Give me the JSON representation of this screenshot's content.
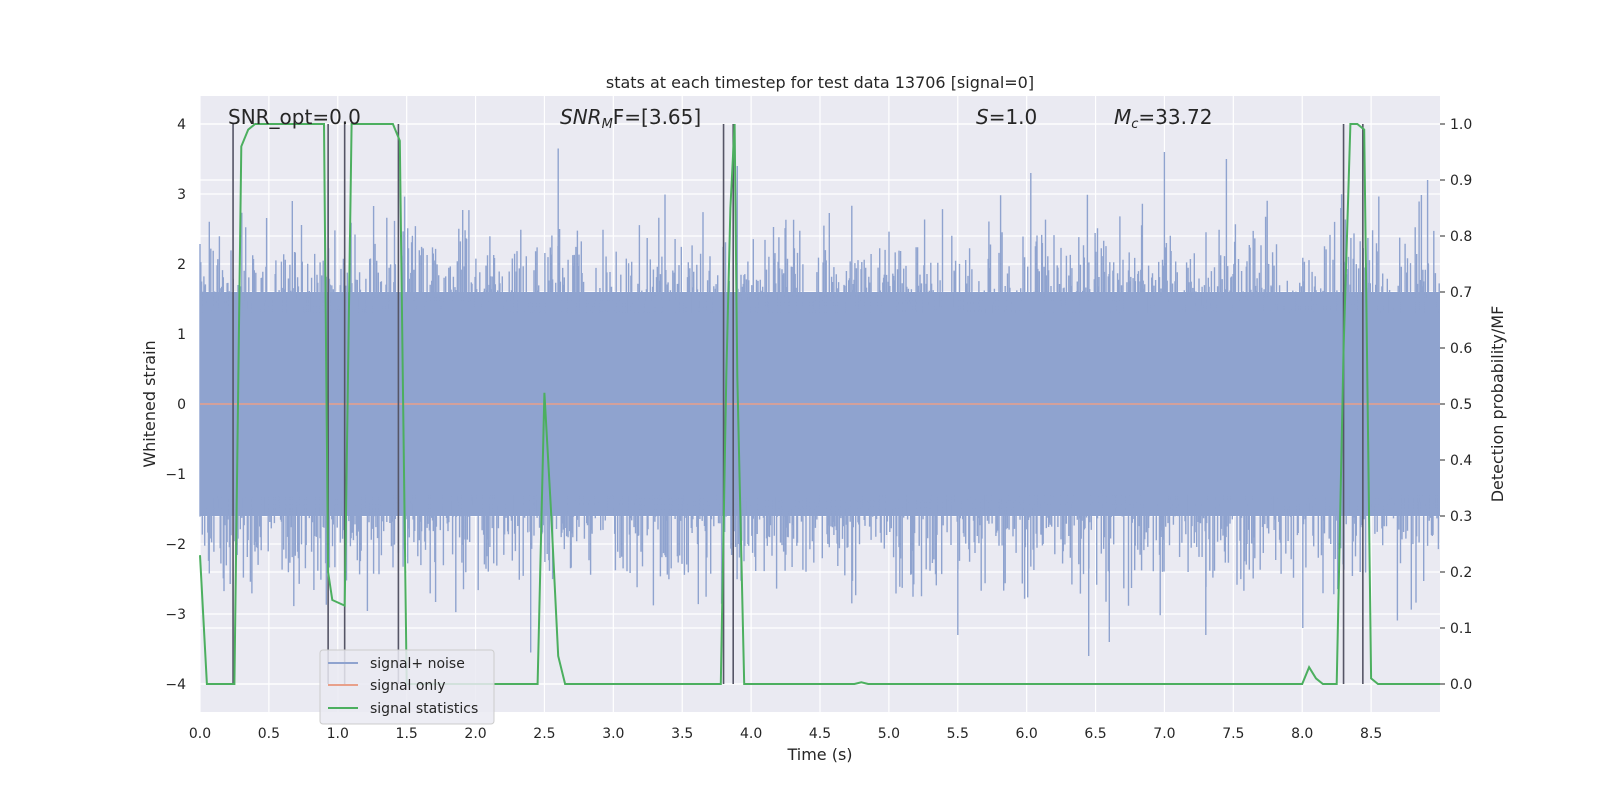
{
  "chart_data": {
    "type": "line",
    "title": "stats at each timestep for test data 13706 [signal=0]",
    "xlabel": "Time (s)",
    "ylabel": "Whitened strain",
    "ylabel_right": "Detection probability/MF",
    "xlim": [
      0.0,
      9.0
    ],
    "ylim": [
      -4.4,
      4.4
    ],
    "ylim_right": [
      -0.05,
      1.05
    ],
    "x_ticks": [
      "0.0",
      "0.5",
      "1.0",
      "1.5",
      "2.0",
      "2.5",
      "3.0",
      "3.5",
      "4.0",
      "4.5",
      "5.0",
      "5.5",
      "6.0",
      "6.5",
      "7.0",
      "7.5",
      "8.0",
      "8.5"
    ],
    "y_ticks": [
      "4",
      "3",
      "2",
      "1",
      "0",
      "−1",
      "−2",
      "−3",
      "−4"
    ],
    "y_ticks_right": [
      "1.0",
      "0.9",
      "0.8",
      "0.7",
      "0.6",
      "0.5",
      "0.4",
      "0.3",
      "0.2",
      "0.1",
      "0.0"
    ],
    "grid": true,
    "legend_position": "lower-left",
    "annotations": {
      "snr_opt": "SNR_opt=0.0",
      "snr_mf_prefix": "SNR",
      "snr_mf_sub": "M",
      "snr_mf_suffix": "F=[3.65]",
      "s_prefix": "S",
      "s_value": "=1.0",
      "mc_prefix": "M",
      "mc_sub": "c",
      "mc_value": "=33.72"
    },
    "series": [
      {
        "name": "signal+ noise",
        "color": "#8fa3cf",
        "axis": "left",
        "description_range": [
          -3.6,
          3.6
        ],
        "spikes": [
          {
            "x": 0.93,
            "y": 3.2
          },
          {
            "x": 0.67,
            "y": 2.9
          },
          {
            "x": 2.6,
            "y": 3.65
          },
          {
            "x": 3.9,
            "y": 3.4
          },
          {
            "x": 6.03,
            "y": 3.3
          },
          {
            "x": 7.0,
            "y": 3.6
          },
          {
            "x": 7.45,
            "y": 3.5
          },
          {
            "x": 2.4,
            "y": -3.55
          },
          {
            "x": 6.6,
            "y": -3.4
          },
          {
            "x": 6.45,
            "y": -3.6
          },
          {
            "x": 5.5,
            "y": -3.3
          },
          {
            "x": 7.3,
            "y": -3.3
          }
        ]
      },
      {
        "name": "signal only",
        "color": "#e8a08a",
        "axis": "left",
        "x": [
          0.0,
          9.0
        ],
        "y": [
          0.0,
          0.0
        ]
      },
      {
        "name": "signal statistics",
        "color": "#4caf5f",
        "axis": "right",
        "x": [
          0.0,
          0.05,
          0.1,
          0.15,
          0.2,
          0.25,
          0.3,
          0.35,
          0.4,
          0.5,
          0.6,
          0.7,
          0.8,
          0.9,
          0.93,
          0.96,
          1.05,
          1.1,
          1.2,
          1.3,
          1.4,
          1.45,
          1.5,
          1.6,
          2.0,
          2.4,
          2.45,
          2.5,
          2.55,
          2.6,
          2.65,
          2.7,
          3.0,
          3.5,
          3.78,
          3.82,
          3.85,
          3.88,
          3.9,
          3.95,
          4.0,
          4.5,
          4.75,
          4.8,
          4.85,
          4.9,
          5.5,
          6.0,
          7.0,
          8.0,
          8.05,
          8.1,
          8.15,
          8.2,
          8.25,
          8.3,
          8.35,
          8.4,
          8.45,
          8.5,
          8.55,
          8.6,
          9.0
        ],
        "y": [
          0.23,
          0.0,
          0.0,
          0.0,
          0.0,
          0.0,
          0.96,
          0.99,
          1.0,
          1.0,
          1.0,
          1.0,
          1.0,
          1.0,
          0.2,
          0.15,
          0.14,
          1.0,
          1.0,
          1.0,
          1.0,
          0.97,
          0.0,
          0.0,
          0.0,
          0.0,
          0.0,
          0.52,
          0.3,
          0.05,
          0.0,
          0.0,
          0.0,
          0.0,
          0.0,
          0.55,
          0.85,
          1.0,
          0.55,
          0.0,
          0.0,
          0.0,
          0.0,
          0.003,
          0.0,
          0.0,
          0.0,
          0.0,
          0.0,
          0.0,
          0.03,
          0.01,
          0.0,
          0.0,
          0.0,
          0.6,
          1.0,
          1.0,
          0.99,
          0.01,
          0.0,
          0.0,
          0.0
        ]
      }
    ],
    "vertical_markers": [
      0.24,
      0.93,
      1.05,
      1.44,
      3.8,
      3.87,
      8.3,
      8.44
    ]
  }
}
